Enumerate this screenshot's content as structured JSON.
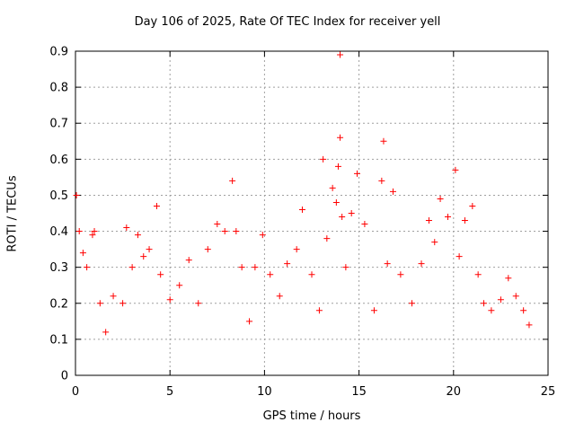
{
  "chart_data": {
    "type": "scatter",
    "title": "Day 106 of 2025, Rate Of TEC Index for receiver yell",
    "xlabel": "GPS time / hours",
    "ylabel": "ROTI / TECUs",
    "xlim": [
      0,
      25
    ],
    "ylim": [
      0,
      0.9
    ],
    "xticks": [
      "0",
      "5",
      "10",
      "15",
      "20",
      "25"
    ],
    "yticks": [
      "0",
      "0.1",
      "0.2",
      "0.3",
      "0.4",
      "0.5",
      "0.6",
      "0.7",
      "0.8",
      "0.9"
    ],
    "grid": true,
    "marker": "+",
    "color": "#ff0000",
    "points": [
      [
        0.05,
        0.5
      ],
      [
        0.2,
        0.4
      ],
      [
        0.4,
        0.34
      ],
      [
        0.6,
        0.3
      ],
      [
        0.9,
        0.39
      ],
      [
        1.0,
        0.4
      ],
      [
        1.3,
        0.2
      ],
      [
        1.6,
        0.12
      ],
      [
        2.0,
        0.22
      ],
      [
        2.5,
        0.2
      ],
      [
        2.7,
        0.41
      ],
      [
        3.0,
        0.3
      ],
      [
        3.3,
        0.39
      ],
      [
        3.6,
        0.33
      ],
      [
        3.9,
        0.35
      ],
      [
        4.3,
        0.47
      ],
      [
        4.5,
        0.28
      ],
      [
        5.0,
        0.21
      ],
      [
        5.5,
        0.25
      ],
      [
        6.0,
        0.32
      ],
      [
        6.5,
        0.2
      ],
      [
        7.0,
        0.35
      ],
      [
        7.5,
        0.42
      ],
      [
        7.9,
        0.4
      ],
      [
        8.3,
        0.54
      ],
      [
        8.5,
        0.4
      ],
      [
        8.8,
        0.3
      ],
      [
        9.2,
        0.15
      ],
      [
        9.5,
        0.3
      ],
      [
        9.9,
        0.39
      ],
      [
        10.3,
        0.28
      ],
      [
        10.8,
        0.22
      ],
      [
        11.2,
        0.31
      ],
      [
        11.7,
        0.35
      ],
      [
        12.0,
        0.46
      ],
      [
        12.5,
        0.28
      ],
      [
        12.9,
        0.18
      ],
      [
        13.1,
        0.6
      ],
      [
        13.3,
        0.38
      ],
      [
        13.6,
        0.52
      ],
      [
        13.8,
        0.48
      ],
      [
        13.9,
        0.58
      ],
      [
        14.0,
        0.89
      ],
      [
        14.0,
        0.66
      ],
      [
        14.1,
        0.44
      ],
      [
        14.3,
        0.3
      ],
      [
        14.6,
        0.45
      ],
      [
        14.9,
        0.56
      ],
      [
        15.3,
        0.42
      ],
      [
        15.8,
        0.18
      ],
      [
        16.2,
        0.54
      ],
      [
        16.3,
        0.65
      ],
      [
        16.5,
        0.31
      ],
      [
        16.8,
        0.51
      ],
      [
        17.2,
        0.28
      ],
      [
        17.8,
        0.2
      ],
      [
        18.3,
        0.31
      ],
      [
        18.7,
        0.43
      ],
      [
        19.0,
        0.37
      ],
      [
        19.3,
        0.49
      ],
      [
        19.7,
        0.44
      ],
      [
        20.1,
        0.57
      ],
      [
        20.3,
        0.33
      ],
      [
        20.6,
        0.43
      ],
      [
        21.0,
        0.47
      ],
      [
        21.3,
        0.28
      ],
      [
        21.6,
        0.2
      ],
      [
        22.0,
        0.18
      ],
      [
        22.5,
        0.21
      ],
      [
        22.9,
        0.27
      ],
      [
        23.3,
        0.22
      ],
      [
        23.7,
        0.18
      ],
      [
        24.0,
        0.14
      ]
    ]
  }
}
